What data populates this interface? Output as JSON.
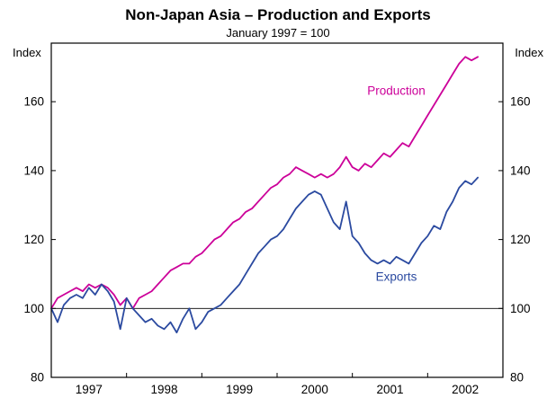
{
  "chart_data": {
    "type": "line",
    "title": "Non-Japan Asia – Production and Exports",
    "subtitle": "January 1997 = 100",
    "index_label": "Index",
    "x_start_year": 1997,
    "months_span": 72,
    "year_ticks": [
      1997,
      1998,
      1999,
      2000,
      2001,
      2002
    ],
    "yticks": [
      80,
      100,
      120,
      140,
      160
    ],
    "ylim": [
      80,
      177
    ],
    "reference_line": 100,
    "grid": "reference-line-only",
    "legend_position": "inline-labels",
    "series": [
      {
        "name": "Production",
        "color": "#cc0099",
        "label_pos": {
          "month": 55,
          "value": 162
        },
        "values": [
          100,
          103,
          104,
          105,
          106,
          105,
          107,
          106,
          107,
          106,
          104,
          101,
          103,
          100,
          103,
          104,
          105,
          107,
          109,
          111,
          112,
          113,
          113,
          115,
          116,
          118,
          120,
          121,
          123,
          125,
          126,
          128,
          129,
          131,
          133,
          135,
          136,
          138,
          139,
          141,
          140,
          139,
          138,
          139,
          138,
          139,
          141,
          144,
          141,
          140,
          142,
          141,
          143,
          145,
          144,
          146,
          148,
          147,
          150,
          153,
          156,
          159,
          162,
          165,
          168,
          171,
          173,
          172,
          173
        ]
      },
      {
        "name": "Exports",
        "color": "#2b4aa0",
        "label_pos": {
          "month": 55,
          "value": 108
        },
        "values": [
          100,
          96,
          101,
          103,
          104,
          103,
          106,
          104,
          107,
          105,
          102,
          94,
          103,
          100,
          98,
          96,
          97,
          95,
          94,
          96,
          93,
          97,
          100,
          94,
          96,
          99,
          100,
          101,
          103,
          105,
          107,
          110,
          113,
          116,
          118,
          120,
          121,
          123,
          126,
          129,
          131,
          133,
          134,
          133,
          129,
          125,
          123,
          131,
          121,
          119,
          116,
          114,
          113,
          114,
          113,
          115,
          114,
          113,
          116,
          119,
          121,
          124,
          123,
          128,
          131,
          135,
          137,
          136,
          138
        ]
      }
    ]
  }
}
